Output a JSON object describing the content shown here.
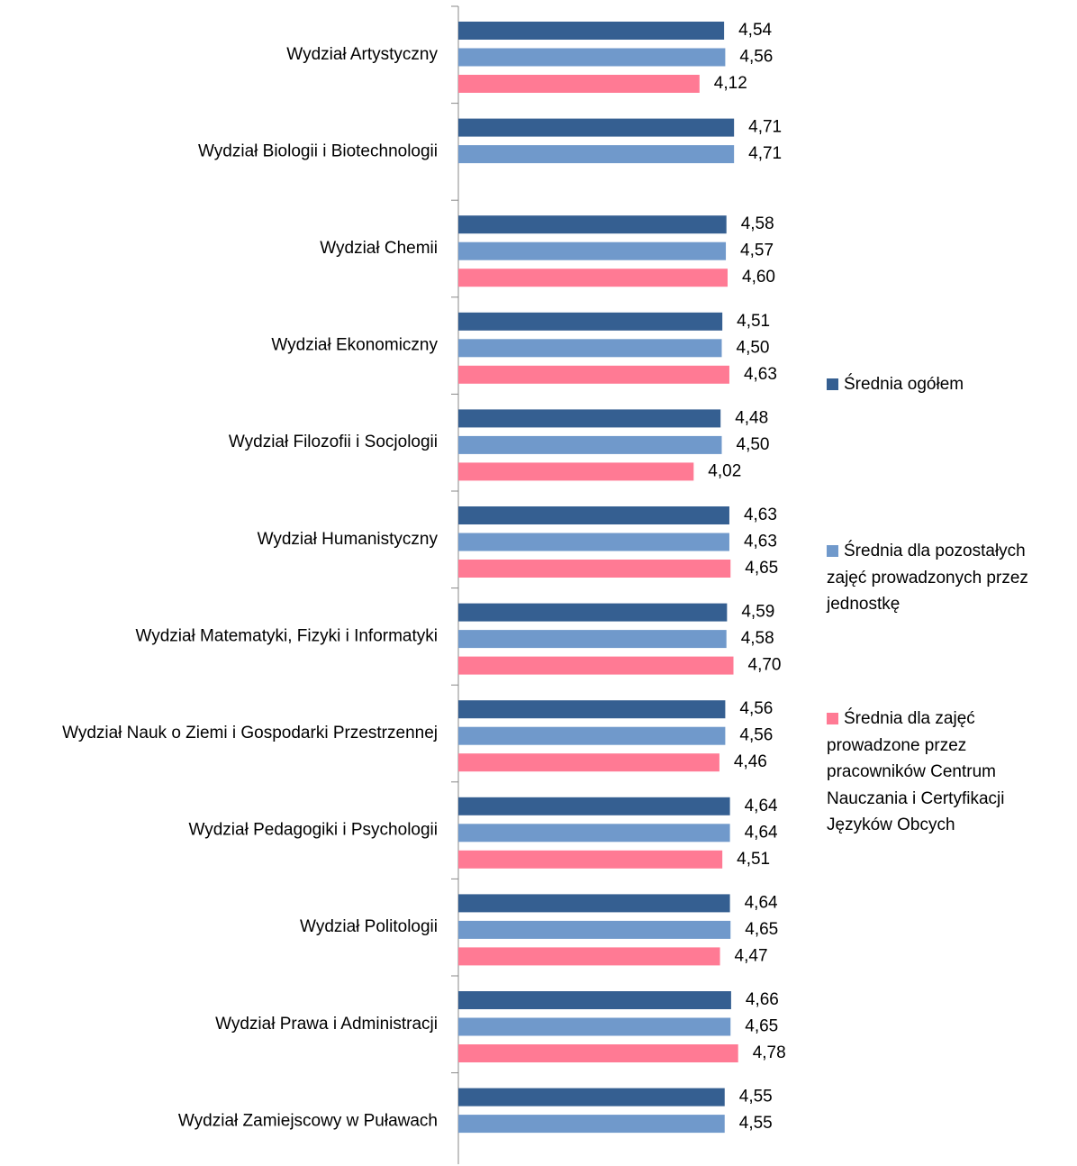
{
  "chart_data": {
    "type": "bar",
    "orientation": "horizontal",
    "categories": [
      "Wydział Artystyczny",
      "Wydział Biologii i Biotechnologii",
      "Wydział Chemii",
      "Wydział Ekonomiczny",
      "Wydział Filozofii i Socjologii",
      "Wydział Humanistyczny",
      "Wydział Matematyki, Fizyki i Informatyki",
      "Wydział Nauk o Ziemi i Gospodarki Przestrzennej",
      "Wydział Pedagogiki i Psychologii",
      "Wydział Politologii",
      "Wydział Prawa i Administracji",
      "Wydział Zamiejscowy w Puławach"
    ],
    "series": [
      {
        "name": "Średnia ogółem",
        "color": "#355f91",
        "values": [
          4.54,
          4.71,
          4.58,
          4.51,
          4.48,
          4.63,
          4.59,
          4.56,
          4.64,
          4.64,
          4.66,
          4.55
        ],
        "value_labels": [
          "4,54",
          "4,71",
          "4,58",
          "4,51",
          "4,48",
          "4,63",
          "4,59",
          "4,56",
          "4,64",
          "4,64",
          "4,66",
          "4,55"
        ]
      },
      {
        "name": "Średnia dla pozostałych zajęć prowadzonych przez jednostkę",
        "color": "#7099cb",
        "values": [
          4.56,
          4.71,
          4.57,
          4.5,
          4.5,
          4.63,
          4.58,
          4.56,
          4.64,
          4.65,
          4.65,
          4.55
        ],
        "value_labels": [
          "4,56",
          "4,71",
          "4,57",
          "4,50",
          "4,50",
          "4,63",
          "4,58",
          "4,56",
          "4,64",
          "4,65",
          "4,65",
          "4,55"
        ]
      },
      {
        "name": "Średnia dla zajęć prowadzone przez pracowników Centrum Nauczania i Certyfikacji Języków Obcych",
        "color": "#ff7a94",
        "values": [
          4.12,
          null,
          4.6,
          4.63,
          4.02,
          4.65,
          4.7,
          4.46,
          4.51,
          4.47,
          4.78,
          null
        ],
        "value_labels": [
          "4,12",
          null,
          "4,60",
          "4,63",
          "4,02",
          "4,65",
          "4,70",
          "4,46",
          "4,51",
          "4,47",
          "4,78",
          null
        ]
      }
    ],
    "xlim": [
      0,
      6
    ]
  }
}
